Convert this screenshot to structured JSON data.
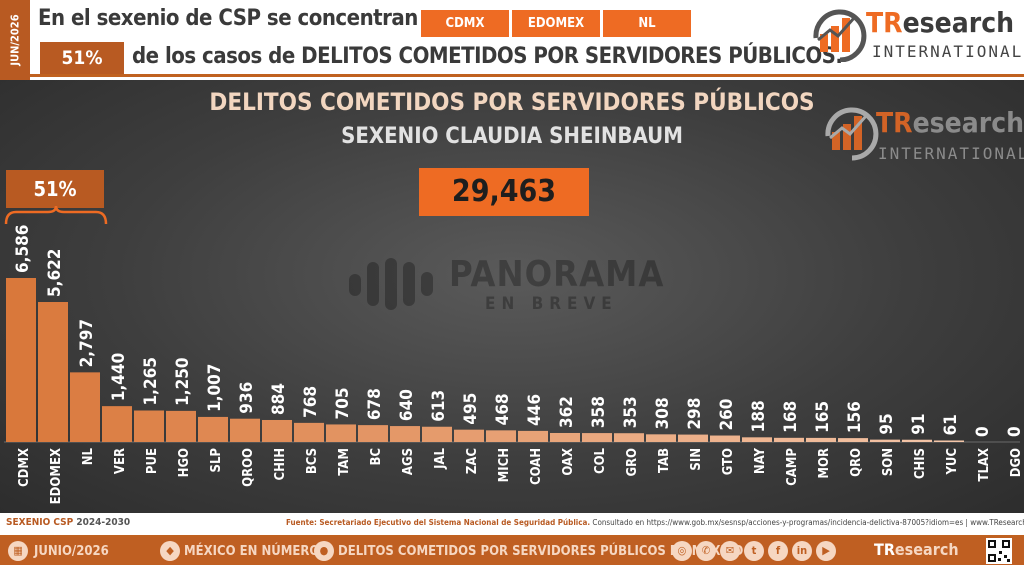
{
  "header": {
    "date_tab": "JUN/2026",
    "line1": "En el sexenio de CSP se concentran en",
    "states": [
      "CDMX",
      "EDOMEX",
      "NL"
    ],
    "pct": "51%",
    "line2": "de los casos de DELITOS COMETIDOS POR SERVIDORES PÚBLICOS."
  },
  "logo": {
    "tr": "TR",
    "esearch": "esearch",
    "international": "INTERNATIONAL"
  },
  "watermark": {
    "title": "PANORAMA",
    "subtitle": "EN BREVE"
  },
  "chart_data": {
    "type": "bar",
    "title": "DELITOS COMETIDOS POR SERVIDORES PÚBLICOS",
    "subtitle": "SEXENIO CLAUDIA SHEINBAUM",
    "total": "29,463",
    "highlight_pct": "51%",
    "categories": [
      "CDMX",
      "EDOMEX",
      "NL",
      "VER",
      "PUE",
      "HGO",
      "SLP",
      "QROO",
      "CHIH",
      "BCS",
      "TAM",
      "BC",
      "AGS",
      "JAL",
      "ZAC",
      "MICH",
      "COAH",
      "OAX",
      "COL",
      "GRO",
      "TAB",
      "SIN",
      "GTO",
      "NAY",
      "CAMP",
      "MOR",
      "QRO",
      "SON",
      "CHIS",
      "YUC",
      "TLAX",
      "DGO"
    ],
    "values": [
      6586,
      5622,
      2797,
      1440,
      1265,
      1250,
      1007,
      936,
      884,
      768,
      705,
      678,
      640,
      613,
      495,
      468,
      446,
      362,
      358,
      353,
      308,
      298,
      260,
      188,
      168,
      165,
      156,
      95,
      91,
      61,
      0,
      0
    ],
    "value_labels": [
      "6,586",
      "5,622",
      "2,797",
      "1,440",
      "1,265",
      "1,250",
      "1,007",
      "936",
      "884",
      "768",
      "705",
      "678",
      "640",
      "613",
      "495",
      "468",
      "446",
      "362",
      "358",
      "353",
      "308",
      "298",
      "260",
      "188",
      "168",
      "165",
      "156",
      "95",
      "91",
      "61",
      "0",
      "0"
    ],
    "colors": {
      "bar_top": "#d9783b",
      "bar_light": "#f6cbb0",
      "panel": "#3e3e3e"
    }
  },
  "footer": {
    "sexenio": "SEXENIO CSP",
    "period": "2024-2030",
    "source": "Fuente: Secretariado Ejecutivo del Sistema Nacional de Seguridad Pública.",
    "consulted": "Consultado en https://www.gob.mx/sesnsp/acciones-y-programas/incidencia-delictiva-87005?idiom=es | www.TResearch.Mx |",
    "date": "JUNIO/2026",
    "section": "MÉXICO EN NÚMEROS",
    "topic": "DELITOS COMETIDOS POR SERVIDORES PÚBLICOS EN MÉXICO"
  }
}
